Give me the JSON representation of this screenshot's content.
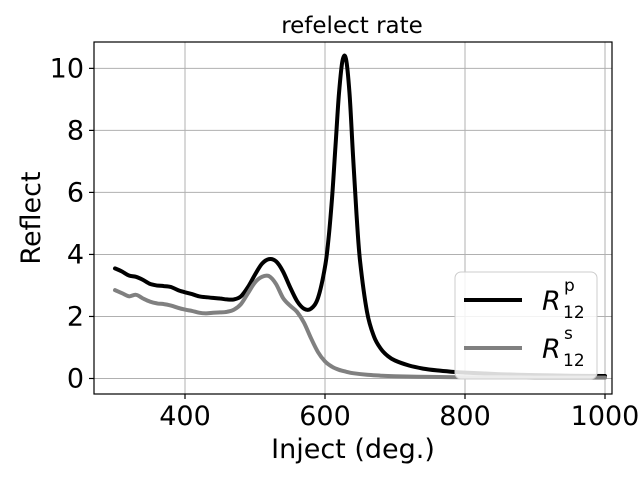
{
  "chart_data": {
    "type": "line",
    "title": "refelect rate",
    "xlabel": "Inject (deg.)",
    "ylabel": "Reflect",
    "xlim": [
      270,
      1010
    ],
    "ylim": [
      -0.5,
      10.85
    ],
    "xticks": [
      400,
      600,
      800,
      1000
    ],
    "yticks": [
      0,
      2,
      4,
      6,
      8,
      10
    ],
    "grid": true,
    "legend_position": "lower right",
    "series": [
      {
        "name": "R_12^p",
        "legend_base": "R",
        "legend_sub": "12",
        "legend_sup": "p",
        "color": "#000000",
        "x": [
          300,
          310,
          320,
          330,
          340,
          350,
          360,
          370,
          380,
          390,
          400,
          410,
          420,
          430,
          440,
          450,
          460,
          470,
          480,
          490,
          500,
          510,
          520,
          530,
          540,
          550,
          560,
          570,
          580,
          590,
          600,
          605,
          610,
          615,
          620,
          625,
          630,
          635,
          640,
          645,
          650,
          660,
          670,
          680,
          690,
          700,
          720,
          740,
          760,
          780,
          800,
          850,
          900,
          950,
          1000
        ],
        "y": [
          3.55,
          3.45,
          3.32,
          3.28,
          3.18,
          3.05,
          3.0,
          2.98,
          2.95,
          2.85,
          2.78,
          2.72,
          2.65,
          2.62,
          2.6,
          2.58,
          2.55,
          2.55,
          2.65,
          2.95,
          3.35,
          3.7,
          3.85,
          3.78,
          3.45,
          2.95,
          2.5,
          2.25,
          2.25,
          2.6,
          3.6,
          4.5,
          5.8,
          7.5,
          9.2,
          10.25,
          10.3,
          9.2,
          7.2,
          5.3,
          3.8,
          2.15,
          1.35,
          0.95,
          0.72,
          0.58,
          0.42,
          0.32,
          0.26,
          0.22,
          0.19,
          0.14,
          0.11,
          0.09,
          0.08
        ]
      },
      {
        "name": "R_12^s",
        "legend_base": "R",
        "legend_sub": "12",
        "legend_sup": "s",
        "color": "#808080",
        "x": [
          300,
          310,
          320,
          330,
          340,
          350,
          360,
          370,
          380,
          390,
          400,
          410,
          420,
          430,
          440,
          450,
          460,
          470,
          480,
          490,
          500,
          510,
          520,
          530,
          540,
          550,
          560,
          570,
          580,
          590,
          600,
          610,
          620,
          630,
          640,
          660,
          680,
          700,
          750,
          800,
          850,
          900,
          950,
          1000
        ],
        "y": [
          2.85,
          2.75,
          2.65,
          2.7,
          2.58,
          2.48,
          2.42,
          2.4,
          2.35,
          2.28,
          2.22,
          2.18,
          2.12,
          2.1,
          2.12,
          2.13,
          2.15,
          2.22,
          2.4,
          2.75,
          3.1,
          3.28,
          3.3,
          3.05,
          2.6,
          2.35,
          2.15,
          1.8,
          1.3,
          0.85,
          0.55,
          0.38,
          0.28,
          0.22,
          0.17,
          0.12,
          0.09,
          0.07,
          0.05,
          0.04,
          0.04,
          0.03,
          0.03,
          0.03
        ]
      }
    ]
  }
}
